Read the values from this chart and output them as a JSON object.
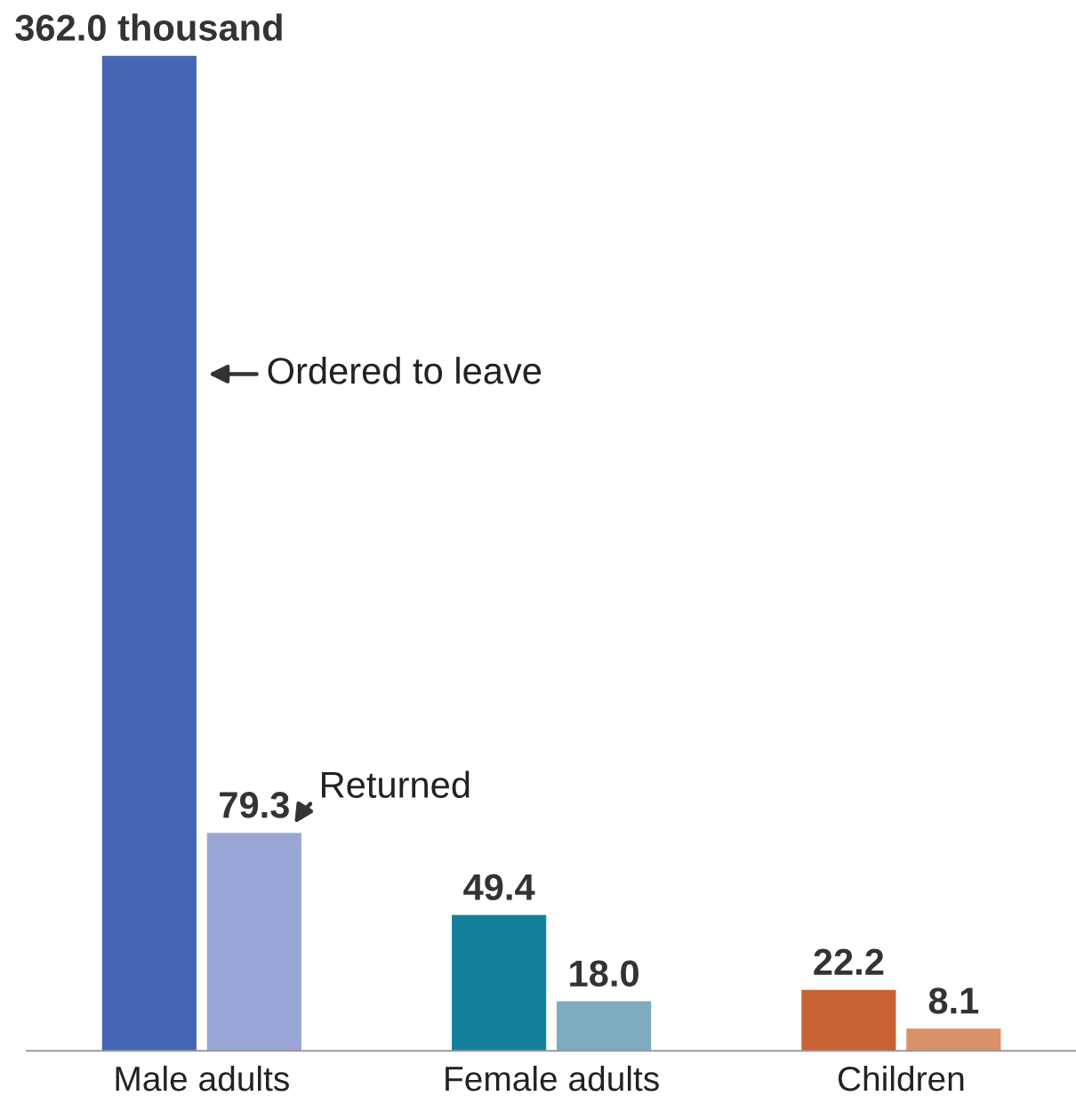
{
  "chart_data": {
    "type": "bar",
    "categories": [
      "Male adults",
      "Female adults",
      "Children"
    ],
    "series": [
      {
        "name": "Ordered to leave",
        "colors": [
          "#4567b3",
          "#13819c",
          "#c96232"
        ],
        "values": [
          362.0,
          49.4,
          22.2
        ],
        "value_labels": [
          "362.0 thousand",
          "49.4",
          "22.2"
        ]
      },
      {
        "name": "Returned",
        "colors": [
          "#9aa7d6",
          "#7eabbf",
          "#da9068"
        ],
        "values": [
          79.3,
          18.0,
          8.1
        ],
        "value_labels": [
          "79.3",
          "18.0",
          "8.1"
        ]
      }
    ],
    "legend": false,
    "grid": false
  }
}
